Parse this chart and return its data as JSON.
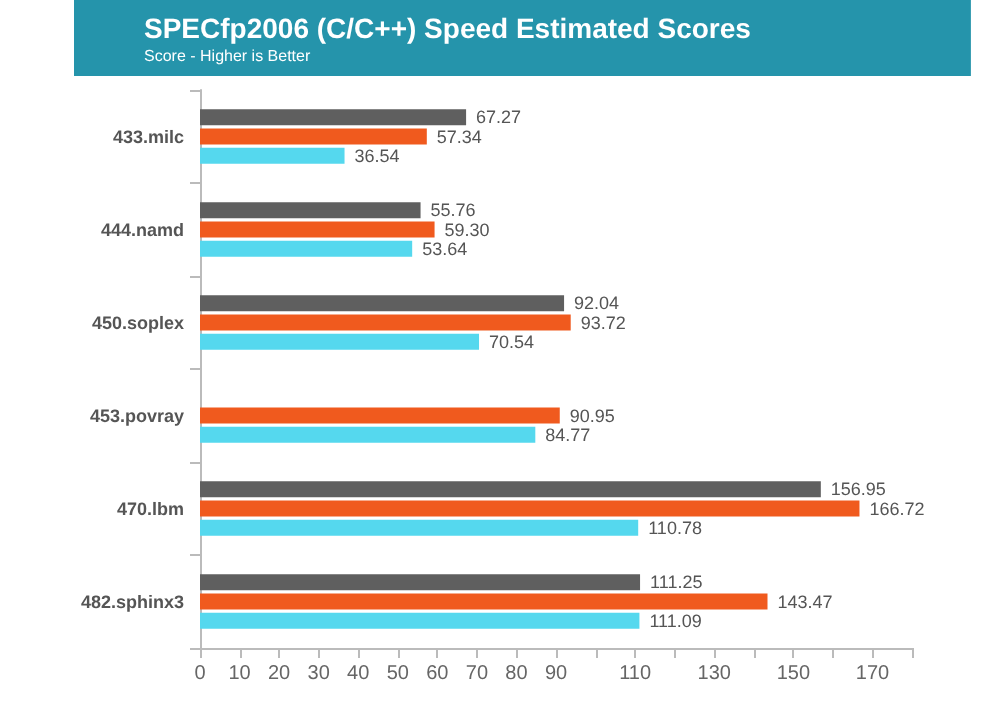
{
  "chart_data": {
    "type": "bar",
    "orientation": "horizontal",
    "title": "SPECfp2006 (C/C++) Speed Estimated Scores",
    "subtitle": "Score - Higher is Better",
    "categories": [
      "433.milc",
      "444.namd",
      "450.soplex",
      "453.povray",
      "470.lbm",
      "482.sphinx3"
    ],
    "series": [
      {
        "color": "#5f5f5f",
        "values": [
          67.27,
          55.76,
          92.04,
          null,
          156.95,
          111.25
        ],
        "value_labels": [
          "67.27",
          "55.76",
          "92.04",
          null,
          "156.95",
          "111.25"
        ]
      },
      {
        "color": "#f05a1e",
        "values": [
          57.34,
          59.3,
          93.72,
          90.95,
          166.72,
          143.47
        ],
        "value_labels": [
          "57.34",
          "59.30",
          "93.72",
          "90.95",
          "166.72",
          "143.47"
        ]
      },
      {
        "color": "#55d8ee",
        "values": [
          36.54,
          53.64,
          70.54,
          84.77,
          110.78,
          111.09
        ],
        "value_labels": [
          "36.54",
          "53.64",
          "70.54",
          "84.77",
          "110.78",
          "111.09"
        ]
      }
    ],
    "xlim": [
      0,
      180
    ],
    "xticks": [
      0,
      10,
      20,
      30,
      40,
      50,
      60,
      70,
      80,
      90,
      {
        "value": 100,
        "label": null
      },
      110,
      {
        "value": 120,
        "label": null
      },
      130,
      {
        "value": 140,
        "label": null
      },
      150,
      {
        "value": 160,
        "label": null
      },
      170,
      {
        "value": 180,
        "label": null
      }
    ],
    "grid": false
  }
}
